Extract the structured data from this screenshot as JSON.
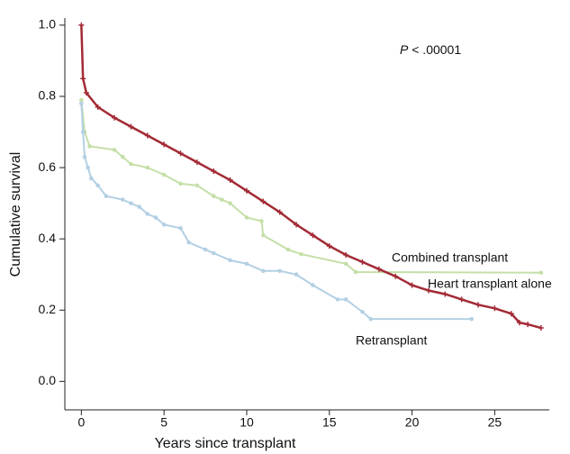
{
  "chart_data": {
    "type": "line",
    "x_label": "Years since transplant",
    "y_label": "Cumulative survival",
    "annotation": {
      "italic": "P",
      "text": "< .00001"
    },
    "xlim": [
      -1,
      28.3
    ],
    "ylim": [
      -0.08,
      1.02
    ],
    "xticks": [
      0,
      5,
      10,
      15,
      20,
      25
    ],
    "yticks": [
      {
        "value": 0,
        "label": "0.0"
      },
      0.2,
      0.4,
      0.6,
      0.8,
      {
        "value": 1,
        "label": "1.0"
      }
    ],
    "series": [
      {
        "name": "Combined transplant",
        "color": "#c5dfa8",
        "marker": "circle",
        "x": [
          0,
          0.2,
          0.5,
          2,
          2.5,
          3,
          4,
          5,
          6,
          7,
          8,
          8.5,
          9,
          10,
          10.9,
          11,
          12.5,
          13.3,
          16,
          16.6,
          27.8
        ],
        "values": [
          0.79,
          0.7,
          0.66,
          0.65,
          0.63,
          0.61,
          0.6,
          0.58,
          0.555,
          0.55,
          0.52,
          0.51,
          0.5,
          0.46,
          0.45,
          0.41,
          0.37,
          0.357,
          0.33,
          0.307,
          0.305
        ]
      },
      {
        "name": "Heart transplant alone",
        "color": "#a32a35",
        "marker": "cross",
        "x": [
          0,
          0.1,
          0.3,
          1,
          2,
          3,
          4,
          5,
          6,
          7,
          8,
          9,
          10,
          11,
          12,
          13,
          14,
          15,
          16,
          17,
          18,
          19,
          20,
          21,
          22,
          23,
          24,
          25,
          26,
          26.5,
          27,
          27.8
        ],
        "values": [
          1.0,
          0.85,
          0.81,
          0.77,
          0.74,
          0.715,
          0.69,
          0.665,
          0.64,
          0.615,
          0.59,
          0.565,
          0.535,
          0.505,
          0.475,
          0.44,
          0.41,
          0.38,
          0.355,
          0.335,
          0.315,
          0.295,
          0.27,
          0.255,
          0.245,
          0.23,
          0.215,
          0.205,
          0.19,
          0.165,
          0.16,
          0.15
        ]
      },
      {
        "name": "Retransplant",
        "color": "#b3d0e3",
        "marker": "circle",
        "x": [
          0,
          0.1,
          0.2,
          0.4,
          0.6,
          1,
          1.5,
          2.5,
          3,
          3.5,
          4,
          4.5,
          5,
          6,
          6.5,
          7.5,
          8,
          9,
          10,
          11,
          12,
          13,
          14,
          15.5,
          16,
          17,
          17.5,
          23.6
        ],
        "values": [
          0.78,
          0.7,
          0.63,
          0.6,
          0.57,
          0.55,
          0.52,
          0.51,
          0.5,
          0.49,
          0.47,
          0.46,
          0.44,
          0.43,
          0.39,
          0.37,
          0.36,
          0.34,
          0.33,
          0.31,
          0.31,
          0.3,
          0.27,
          0.23,
          0.23,
          0.195,
          0.175,
          0.175
        ]
      }
    ]
  }
}
